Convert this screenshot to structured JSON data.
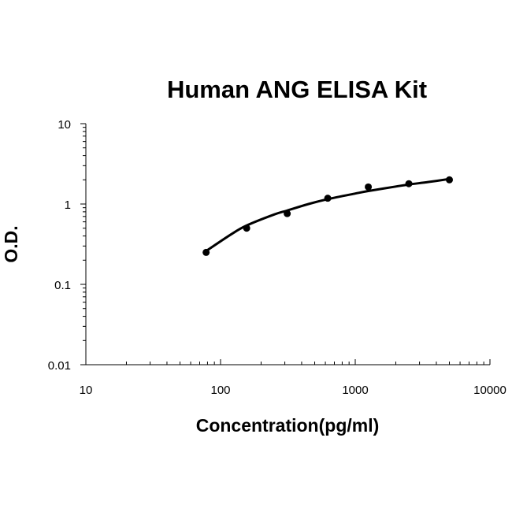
{
  "chart_data": {
    "type": "scatter",
    "title": "Human ANG ELISA Kit",
    "xlabel": "Concentration(pg/ml)",
    "ylabel": "O.D.",
    "x_scale": "log",
    "y_scale": "log",
    "xlim": [
      10,
      10000
    ],
    "ylim": [
      0.01,
      10
    ],
    "x_ticks": [
      "10",
      "100",
      "1000",
      "10000"
    ],
    "y_ticks": [
      "0.01",
      "0.1",
      "1",
      "10"
    ],
    "grid": false,
    "legend": "none",
    "series": [
      {
        "points": [
          {
            "x": 78.125,
            "y": 0.25
          },
          {
            "x": 156.25,
            "y": 0.5
          },
          {
            "x": 312.5,
            "y": 0.76
          },
          {
            "x": 625,
            "y": 1.18
          },
          {
            "x": 1250,
            "y": 1.63
          },
          {
            "x": 2500,
            "y": 1.79
          },
          {
            "x": 5000,
            "y": 2.0
          }
        ]
      }
    ],
    "fit_curve": {
      "type": "smooth",
      "x": [
        78.125,
        120,
        156.25,
        250,
        312.5,
        450,
        625,
        1000,
        1250,
        2000,
        2500,
        3500,
        5000
      ],
      "y": [
        0.26,
        0.42,
        0.54,
        0.74,
        0.83,
        1.0,
        1.15,
        1.35,
        1.45,
        1.65,
        1.75,
        1.88,
        2.05
      ]
    }
  }
}
